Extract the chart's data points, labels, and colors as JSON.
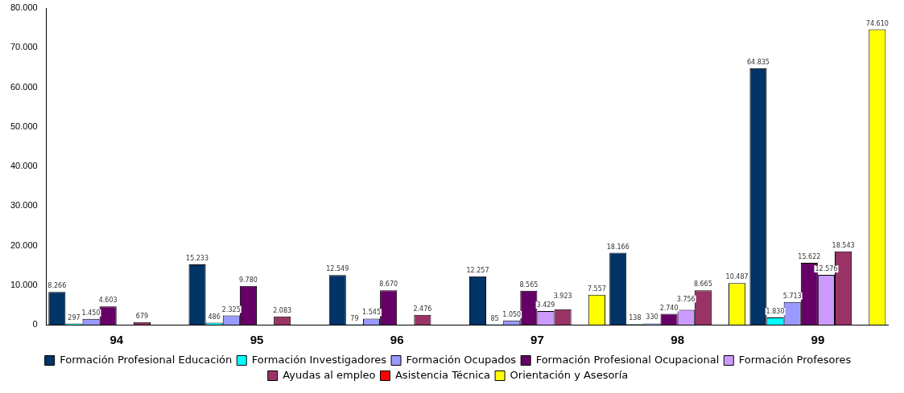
{
  "chart_data": {
    "type": "bar",
    "categories": [
      "94",
      "95",
      "96",
      "97",
      "98",
      "99"
    ],
    "series": [
      {
        "name": "Formación Profesional Educación",
        "color": "#003366",
        "values": [
          8266,
          15233,
          12549,
          12257,
          18166,
          64835
        ],
        "value_labels": [
          "8.266",
          "15.233",
          "12.549",
          "12.257",
          "18.166",
          "64.835"
        ]
      },
      {
        "name": "Formación Investigadores",
        "color": "#00ffff",
        "values": [
          297,
          486,
          79,
          85,
          138,
          1830
        ],
        "value_labels": [
          "297",
          "486",
          "79",
          "85",
          "138",
          "1.830"
        ]
      },
      {
        "name": "Formación Ocupados",
        "color": "#9999ff",
        "values": [
          1450,
          2325,
          1545,
          1050,
          330,
          5713
        ],
        "value_labels": [
          "1.450",
          "2.325",
          "1.545",
          "1.050",
          "330",
          "5.713"
        ]
      },
      {
        "name": "Formación Profesional Ocupacional",
        "color": "#660066",
        "values": [
          4603,
          9780,
          8670,
          8565,
          2740,
          15622
        ],
        "value_labels": [
          "4.603",
          "9.780",
          "8.670",
          "8.565",
          "2.740",
          "15.622"
        ]
      },
      {
        "name": "Formación Profesores",
        "color": "#cc99ff",
        "values": [
          null,
          null,
          null,
          3429,
          3756,
          12576
        ],
        "value_labels": [
          null,
          null,
          null,
          "3.429",
          "3.756",
          "12.576"
        ]
      },
      {
        "name": "Ayudas al empleo",
        "color": "#993366",
        "values": [
          679,
          2083,
          2476,
          3923,
          8665,
          18543
        ],
        "value_labels": [
          "679",
          "2.083",
          "2.476",
          "3.923",
          "8.665",
          "18.543"
        ]
      },
      {
        "name": "Asistencia Técnica",
        "color": "#ff0000",
        "values": [
          null,
          null,
          null,
          null,
          null,
          null
        ]
      },
      {
        "name": "Orientación y Asesoría",
        "color": "#ffff00",
        "values": [
          null,
          null,
          null,
          7557,
          10487,
          74610
        ],
        "value_labels": [
          null,
          null,
          null,
          "7.557",
          "10.487",
          "74.610"
        ]
      }
    ],
    "ylim": [
      0,
      80000
    ],
    "yticks": [
      0,
      {
        "value": 10000,
        "label": "10.000"
      },
      {
        "value": 20000,
        "label": "20.000"
      },
      {
        "value": 30000,
        "label": "30.000"
      },
      {
        "value": 40000,
        "label": "40.000"
      },
      {
        "value": 50000,
        "label": "50.000"
      },
      {
        "value": 60000,
        "label": "60.000"
      },
      {
        "value": 70000,
        "label": "70.000"
      },
      {
        "value": 80000,
        "label": "80.000"
      }
    ],
    "grid": false,
    "legend": "bottom"
  }
}
